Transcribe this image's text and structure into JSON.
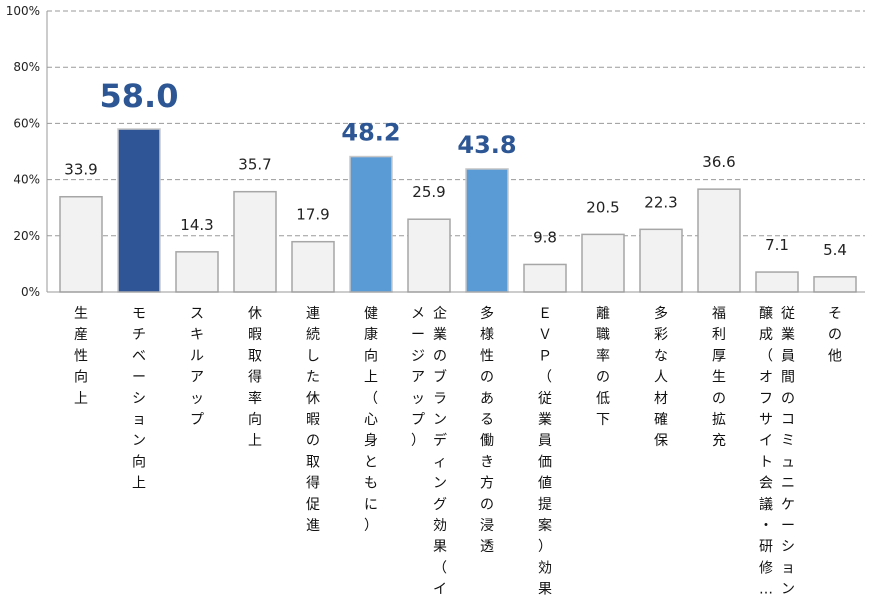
{
  "chart_data": {
    "type": "bar",
    "title": "",
    "xlabel": "",
    "ylabel": "",
    "ylim": [
      0,
      100
    ],
    "yticks": [
      "0%",
      "20%",
      "40%",
      "60%",
      "80%",
      "100%"
    ],
    "grid": true,
    "categories": [
      "生産性向上",
      "モチベーション向上",
      "スキルアップ",
      "休暇取得率向上",
      "連続した休暇の取得促進",
      "健康向上（心身ともに）",
      "企業のブランディング効果（イメージアップ）",
      "多様性のある働き方の浸透",
      "ＥＶＰ（従業員価値提案）効果",
      "離職率の低下",
      "多彩な人材確保",
      "福利厚生の拡充",
      "従業員間のコミュニケーション醸成（オフサイト会議・研修…",
      "その他"
    ],
    "values": [
      33.9,
      58.0,
      14.3,
      35.7,
      17.9,
      48.2,
      25.9,
      43.8,
      9.8,
      20.5,
      22.3,
      36.6,
      7.1,
      5.4
    ],
    "value_labels": [
      "33.9",
      "58.0",
      "14.3",
      "35.7",
      "17.9",
      "48.2",
      "25.9",
      "43.8",
      "9.8",
      "20.5",
      "22.3",
      "36.6",
      "7.1",
      "5.4"
    ],
    "highlight_rank": [
      0,
      1,
      0,
      0,
      0,
      2,
      0,
      2,
      0,
      0,
      0,
      0,
      0,
      0
    ],
    "colors": {
      "default_fill": "#f2f2f2",
      "default_stroke": "#a6a6a6",
      "top_fill": "#2f5597",
      "second_fill": "#5b9bd5",
      "label_highlight": "#2c5694",
      "grid": "#9a9a9a"
    }
  }
}
